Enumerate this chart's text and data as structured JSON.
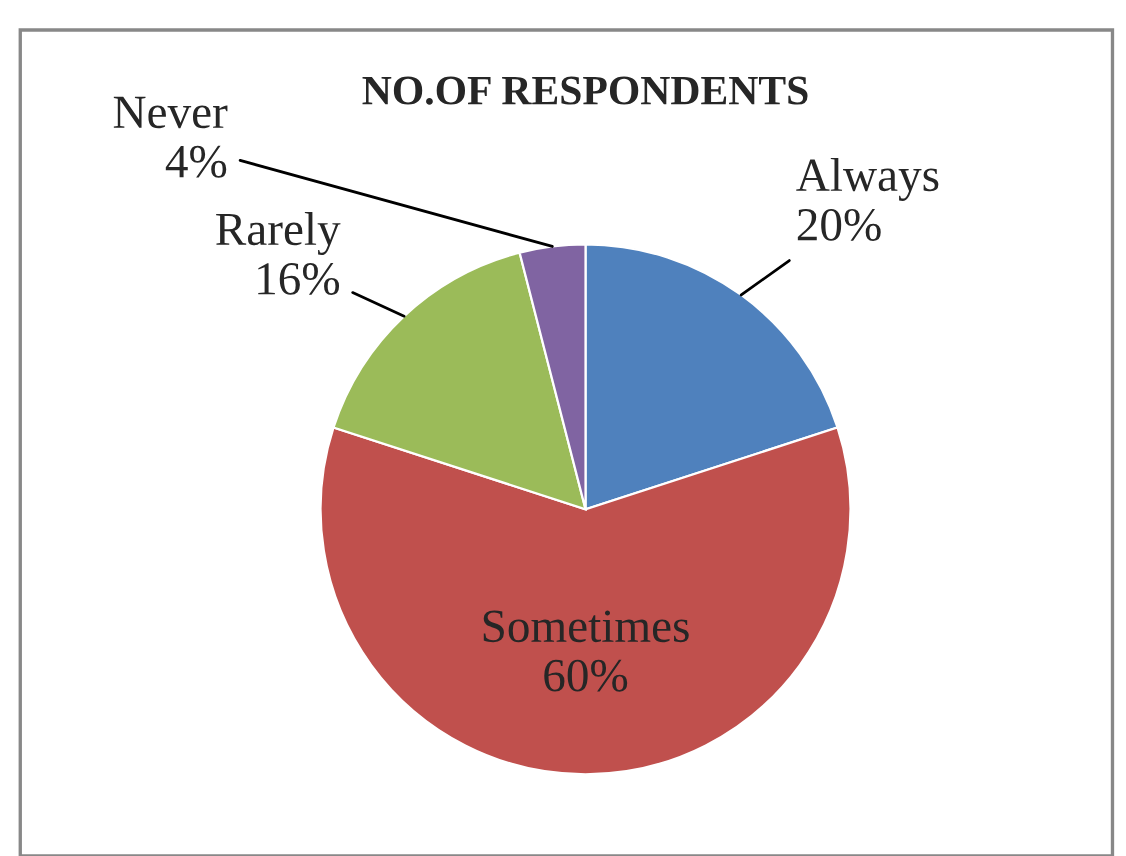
{
  "chart_data": {
    "type": "pie",
    "title": "NO.OF RESPONDENTS",
    "categories": [
      "Always",
      "Sometimes",
      "Rarely",
      "Never"
    ],
    "values": [
      20,
      60,
      16,
      4
    ],
    "colors": [
      "#4f81bd",
      "#c0504d",
      "#9bbb59",
      "#8064a2"
    ],
    "value_labels": [
      "20%",
      "60%",
      "16%",
      "4%"
    ],
    "legend": false
  }
}
